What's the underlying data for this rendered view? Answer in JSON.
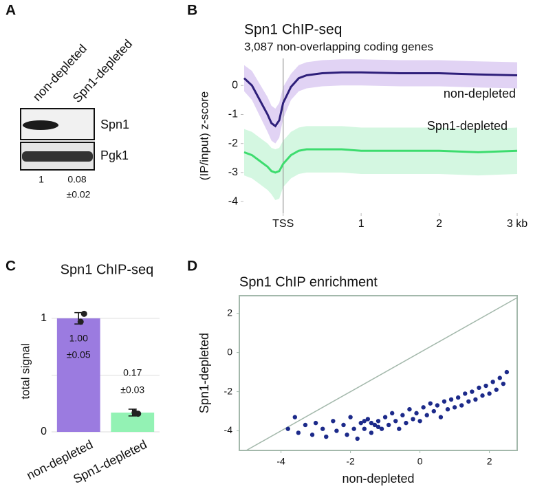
{
  "panel_labels": [
    "A",
    "B",
    "C",
    "D"
  ],
  "blot": {
    "lanes": [
      "non-depleted",
      "Spn1-depleted"
    ],
    "rows": [
      "Spn1",
      "Pgk1"
    ],
    "quant": [
      "1",
      "0.08"
    ],
    "quant_error": "±0.02"
  },
  "chart_data": [
    {
      "type": "line",
      "title": "Spn1 ChIP-seq",
      "subtitle": "3,087 non-overlapping coding genes",
      "y_label": "(IP/input) z-score",
      "x": [
        -0.5,
        -0.4,
        -0.3,
        -0.2,
        -0.15,
        -0.1,
        -0.05,
        0,
        0.1,
        0.2,
        0.3,
        0.5,
        0.75,
        1,
        1.5,
        2,
        2.5,
        3
      ],
      "series": [
        {
          "name": "non-depleted",
          "color": "#2e1f7a",
          "band_color": "#dccbf2",
          "values": [
            0.25,
            0.0,
            -0.5,
            -1.0,
            -1.3,
            -1.4,
            -1.2,
            -0.6,
            -0.05,
            0.25,
            0.35,
            0.42,
            0.45,
            0.45,
            0.42,
            0.42,
            0.38,
            0.35
          ],
          "upper": [
            0.7,
            0.5,
            0.05,
            -0.4,
            -0.7,
            -0.8,
            -0.6,
            -0.05,
            0.4,
            0.7,
            0.8,
            0.87,
            0.9,
            0.9,
            0.87,
            0.87,
            0.83,
            0.8
          ],
          "lower": [
            -0.2,
            -0.5,
            -1.05,
            -1.6,
            -1.9,
            -2.0,
            -1.8,
            -1.15,
            -0.5,
            -0.2,
            -0.1,
            -0.03,
            0.0,
            0.0,
            -0.03,
            -0.03,
            -0.07,
            -0.1
          ]
        },
        {
          "name": "Spn1-depleted",
          "color": "#3ddc6e",
          "band_color": "#cdf6dc",
          "values": [
            -2.3,
            -2.4,
            -2.6,
            -2.8,
            -2.95,
            -3.0,
            -2.95,
            -2.7,
            -2.4,
            -2.25,
            -2.2,
            -2.2,
            -2.2,
            -2.25,
            -2.25,
            -2.25,
            -2.3,
            -2.25
          ],
          "upper": [
            -1.5,
            -1.6,
            -1.8,
            -2.0,
            -2.15,
            -2.2,
            -2.15,
            -1.9,
            -1.6,
            -1.45,
            -1.4,
            -1.4,
            -1.4,
            -1.45,
            -1.45,
            -1.45,
            -1.5,
            -1.45
          ],
          "lower": [
            -3.1,
            -3.2,
            -3.4,
            -3.6,
            -3.75,
            -3.95,
            -3.9,
            -3.5,
            -3.2,
            -3.05,
            -3.0,
            -3.0,
            -3.0,
            -3.05,
            -3.05,
            -3.05,
            -3.1,
            -3.05
          ]
        }
      ],
      "xlim": [
        -0.5,
        3
      ],
      "ylim": [
        -4.4,
        0.93
      ],
      "xticks": [
        {
          "value": 0,
          "label": "TSS"
        },
        1,
        2,
        {
          "value": 3,
          "label": "3 kb"
        }
      ],
      "yticks": [
        -4,
        -3,
        -2,
        -1,
        0
      ],
      "vline": 0
    },
    {
      "type": "bar",
      "title": "Spn1 ChIP-seq",
      "y_label": "total signal",
      "categories": [
        "non-depleted",
        "Spn1-depleted"
      ],
      "values": [
        1.0,
        0.17
      ],
      "value_labels": [
        "1.00",
        "0.17"
      ],
      "errors": [
        0.05,
        0.03
      ],
      "error_labels": [
        "±0.05",
        "±0.03"
      ],
      "points": [
        [
          1.04,
          0.97
        ],
        [
          0.16,
          0.17
        ]
      ],
      "colors": [
        "#9b7be0",
        "#93f2b4"
      ],
      "ylim": [
        0,
        1.26
      ],
      "yticks": [
        0,
        1
      ],
      "gridlines": [
        0,
        0.5,
        1
      ]
    },
    {
      "type": "scatter",
      "title": "Spn1 ChIP enrichment",
      "x_label": "non-depleted",
      "y_label": "Spn1-depleted",
      "color": "#1c2a8a",
      "x": [
        -3.8,
        -3.6,
        -3.5,
        -3.3,
        -3.1,
        -3.0,
        -2.8,
        -2.7,
        -2.5,
        -2.4,
        -2.2,
        -2.1,
        -2.0,
        -1.9,
        -1.8,
        -1.7,
        -1.6,
        -1.5,
        -1.4,
        -1.3,
        -1.2,
        -1.1,
        -1.0,
        -0.9,
        -0.8,
        -0.7,
        -0.6,
        -0.5,
        -0.4,
        -0.3,
        -0.2,
        -0.1,
        0.0,
        0.1,
        0.2,
        0.3,
        0.4,
        0.5,
        0.6,
        0.7,
        0.8,
        0.9,
        1.0,
        1.1,
        1.2,
        1.3,
        1.4,
        1.5,
        1.6,
        1.7,
        1.8,
        1.9,
        2.0,
        2.1,
        2.2,
        2.3,
        2.4,
        2.5,
        -1.6,
        -1.4,
        -1.2
      ],
      "y": [
        -3.9,
        -3.3,
        -4.1,
        -3.7,
        -4.2,
        -3.6,
        -3.9,
        -4.3,
        -3.5,
        -4.0,
        -3.7,
        -4.2,
        -3.3,
        -3.9,
        -4.4,
        -3.6,
        -3.9,
        -3.4,
        -4.1,
        -3.7,
        -3.5,
        -3.9,
        -3.3,
        -3.7,
        -3.1,
        -3.5,
        -3.9,
        -3.2,
        -3.6,
        -2.9,
        -3.4,
        -3.1,
        -3.5,
        -2.8,
        -3.2,
        -2.6,
        -3.0,
        -2.7,
        -3.3,
        -2.5,
        -2.9,
        -2.4,
        -2.8,
        -2.3,
        -2.7,
        -2.1,
        -2.5,
        -2.0,
        -2.4,
        -1.8,
        -2.2,
        -1.7,
        -2.1,
        -1.5,
        -1.9,
        -1.3,
        -1.6,
        -1.0,
        -3.5,
        -3.6,
        -3.8
      ],
      "xlim": [
        -5.2,
        2.8
      ],
      "ylim": [
        -5.0,
        2.9
      ],
      "xticks": [
        -4,
        -2,
        0,
        2
      ],
      "yticks": [
        -4,
        -2,
        0,
        2
      ],
      "diagonal": true
    }
  ]
}
